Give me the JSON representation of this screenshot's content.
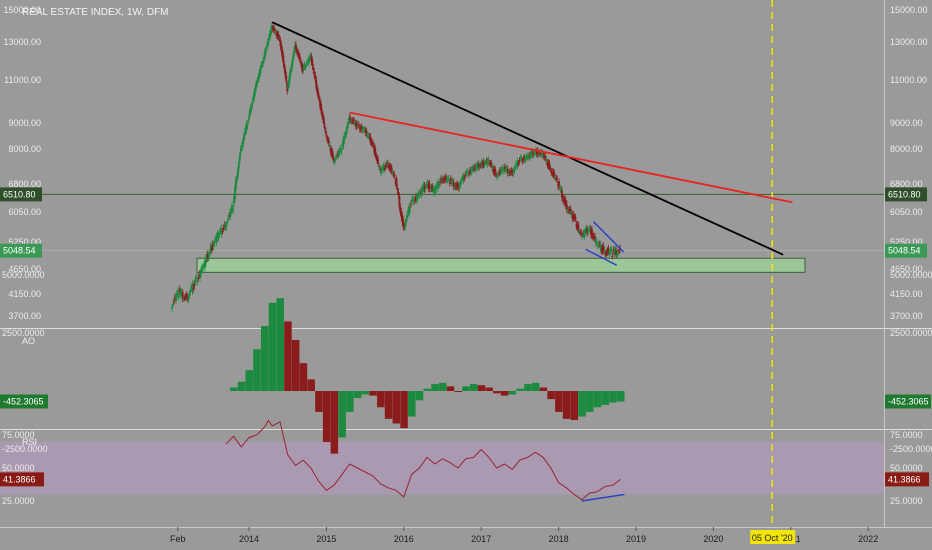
{
  "chart_data": [
    {
      "type": "line",
      "title": "REAL ESTATE INDEX, 1W, DFM",
      "y_ticks": [
        15000,
        13000,
        11000,
        9000,
        8000,
        6800,
        6050,
        5250,
        4650,
        4150,
        3700
      ],
      "y_tick_labels": [
        "15000.00",
        "13000.00",
        "11000.00",
        "9000.00",
        "8000.00",
        "6800.00",
        "6050.00",
        "5250.00",
        "4650.00",
        "4150.00",
        "3700.00"
      ],
      "x_ticks": [
        "Feb",
        "2014",
        "2015",
        "2016",
        "2017",
        "2018",
        "2019",
        "2020",
        "2021",
        "2022"
      ],
      "x_tick_years": [
        2013.08,
        2014.0,
        2015.0,
        2016.0,
        2017.0,
        2018.0,
        2019.0,
        2020.0,
        2021.0,
        2022.0
      ],
      "series": [
        {
          "values": [
            [
              2013.0,
              3920
            ],
            [
              2013.1,
              4180
            ],
            [
              2013.2,
              4050
            ],
            [
              2013.3,
              4350
            ],
            [
              2013.4,
              4650
            ],
            [
              2013.5,
              5050
            ],
            [
              2013.6,
              5400
            ],
            [
              2013.7,
              5700
            ],
            [
              2013.8,
              6200
            ],
            [
              2013.9,
              8000
            ],
            [
              2014.0,
              9200
            ],
            [
              2014.1,
              10800
            ],
            [
              2014.2,
              12200
            ],
            [
              2014.3,
              13900
            ],
            [
              2014.4,
              13200
            ],
            [
              2014.5,
              10500
            ],
            [
              2014.6,
              12800
            ],
            [
              2014.7,
              11500
            ],
            [
              2014.8,
              12200
            ],
            [
              2014.9,
              10200
            ],
            [
              2015.0,
              8500
            ],
            [
              2015.1,
              7600
            ],
            [
              2015.2,
              8000
            ],
            [
              2015.3,
              9200
            ],
            [
              2015.4,
              8900
            ],
            [
              2015.5,
              8700
            ],
            [
              2015.6,
              8200
            ],
            [
              2015.7,
              7200
            ],
            [
              2015.8,
              7500
            ],
            [
              2015.9,
              6900
            ],
            [
              2016.0,
              5600
            ],
            [
              2016.1,
              6300
            ],
            [
              2016.2,
              6500
            ],
            [
              2016.3,
              6800
            ],
            [
              2016.4,
              6600
            ],
            [
              2016.5,
              7000
            ],
            [
              2016.6,
              6900
            ],
            [
              2016.7,
              6700
            ],
            [
              2016.8,
              7100
            ],
            [
              2016.9,
              7300
            ],
            [
              2017.0,
              7450
            ],
            [
              2017.1,
              7550
            ],
            [
              2017.2,
              7100
            ],
            [
              2017.3,
              7300
            ],
            [
              2017.4,
              7150
            ],
            [
              2017.5,
              7600
            ],
            [
              2017.6,
              7700
            ],
            [
              2017.7,
              7900
            ],
            [
              2017.8,
              7800
            ],
            [
              2017.9,
              7300
            ],
            [
              2018.0,
              6800
            ],
            [
              2018.1,
              6200
            ],
            [
              2018.2,
              5900
            ],
            [
              2018.3,
              5400
            ],
            [
              2018.4,
              5600
            ],
            [
              2018.5,
              5200
            ],
            [
              2018.6,
              5050
            ],
            [
              2018.7,
              5000
            ],
            [
              2018.8,
              5048
            ]
          ]
        }
      ],
      "current_value_label": "5048.54",
      "hline_value": 6510.8,
      "hline_label": "6510.80",
      "support_zone": [
        4580,
        4880
      ],
      "colors": {
        "up": "#1c8a3f",
        "down": "#8a1c1c",
        "hline_badge": "#2f4f2a",
        "price_badge": "#3a9a55"
      }
    },
    {
      "type": "bar",
      "label": "AO",
      "y_ticks": [
        5000,
        2500,
        -2500
      ],
      "y_tick_labels": [
        "5000.0000",
        "2500.0000",
        "-2500.0000"
      ],
      "current_value_label": "-452.3065",
      "values": [
        [
          2013.8,
          150
        ],
        [
          2013.9,
          400
        ],
        [
          2014.0,
          900
        ],
        [
          2014.1,
          1800
        ],
        [
          2014.2,
          2800
        ],
        [
          2014.3,
          3800
        ],
        [
          2014.4,
          4000
        ],
        [
          2014.5,
          3000
        ],
        [
          2014.6,
          2200
        ],
        [
          2014.7,
          1200
        ],
        [
          2014.8,
          500
        ],
        [
          2014.9,
          -900
        ],
        [
          2015.0,
          -2200
        ],
        [
          2015.1,
          -2700
        ],
        [
          2015.2,
          -2000
        ],
        [
          2015.3,
          -900
        ],
        [
          2015.4,
          -300
        ],
        [
          2015.5,
          -150
        ],
        [
          2015.6,
          -200
        ],
        [
          2015.7,
          -700
        ],
        [
          2015.8,
          -1200
        ],
        [
          2015.9,
          -1400
        ],
        [
          2016.0,
          -1600
        ],
        [
          2016.1,
          -1100
        ],
        [
          2016.2,
          -400
        ],
        [
          2016.3,
          100
        ],
        [
          2016.4,
          300
        ],
        [
          2016.5,
          350
        ],
        [
          2016.6,
          200
        ],
        [
          2016.7,
          0
        ],
        [
          2016.8,
          200
        ],
        [
          2016.9,
          300
        ],
        [
          2017.0,
          250
        ],
        [
          2017.1,
          150
        ],
        [
          2017.2,
          -100
        ],
        [
          2017.3,
          -200
        ],
        [
          2017.4,
          -150
        ],
        [
          2017.5,
          100
        ],
        [
          2017.6,
          300
        ],
        [
          2017.7,
          350
        ],
        [
          2017.8,
          150
        ],
        [
          2017.9,
          -350
        ],
        [
          2018.0,
          -900
        ],
        [
          2018.1,
          -1200
        ],
        [
          2018.2,
          -1250
        ],
        [
          2018.3,
          -1100
        ],
        [
          2018.4,
          -900
        ],
        [
          2018.5,
          -700
        ],
        [
          2018.6,
          -600
        ],
        [
          2018.7,
          -500
        ],
        [
          2018.8,
          -452
        ]
      ],
      "colors": {
        "up": "#1c8a3f",
        "down": "#8a1c1c"
      }
    },
    {
      "type": "line",
      "label": "RSI",
      "y_ticks": [
        75,
        50,
        25
      ],
      "y_tick_labels": [
        "75.0000",
        "50.0000",
        "25.0000"
      ],
      "current_value_label": "41.3866",
      "band": [
        30,
        70
      ],
      "values": [
        [
          2013.7,
          68
        ],
        [
          2013.8,
          74
        ],
        [
          2013.9,
          66
        ],
        [
          2014.0,
          73
        ],
        [
          2014.1,
          75
        ],
        [
          2014.2,
          81
        ],
        [
          2014.25,
          86
        ],
        [
          2014.3,
          82
        ],
        [
          2014.4,
          85
        ],
        [
          2014.5,
          60
        ],
        [
          2014.6,
          52
        ],
        [
          2014.7,
          56
        ],
        [
          2014.8,
          50
        ],
        [
          2014.9,
          40
        ],
        [
          2015.0,
          33
        ],
        [
          2015.1,
          37
        ],
        [
          2015.2,
          45
        ],
        [
          2015.3,
          53
        ],
        [
          2015.4,
          50
        ],
        [
          2015.5,
          47
        ],
        [
          2015.6,
          44
        ],
        [
          2015.7,
          38
        ],
        [
          2015.8,
          35
        ],
        [
          2015.9,
          33
        ],
        [
          2016.0,
          28
        ],
        [
          2016.1,
          45
        ],
        [
          2016.2,
          50
        ],
        [
          2016.3,
          58
        ],
        [
          2016.4,
          53
        ],
        [
          2016.5,
          57
        ],
        [
          2016.6,
          54
        ],
        [
          2016.7,
          50
        ],
        [
          2016.8,
          57
        ],
        [
          2016.9,
          58
        ],
        [
          2017.0,
          64
        ],
        [
          2017.1,
          58
        ],
        [
          2017.2,
          50
        ],
        [
          2017.3,
          53
        ],
        [
          2017.4,
          49
        ],
        [
          2017.5,
          56
        ],
        [
          2017.6,
          58
        ],
        [
          2017.7,
          62
        ],
        [
          2017.8,
          58
        ],
        [
          2017.9,
          50
        ],
        [
          2018.0,
          39
        ],
        [
          2018.1,
          35
        ],
        [
          2018.2,
          30
        ],
        [
          2018.3,
          26
        ],
        [
          2018.4,
          31
        ],
        [
          2018.5,
          32
        ],
        [
          2018.6,
          36
        ],
        [
          2018.7,
          37
        ],
        [
          2018.8,
          41.39
        ]
      ],
      "colors": {
        "line": "#9b2233",
        "band": "#ad9ab5"
      }
    }
  ],
  "time_marker": {
    "label": "05 Oct '20",
    "year": 2020.76,
    "color": "#f2e600"
  }
}
